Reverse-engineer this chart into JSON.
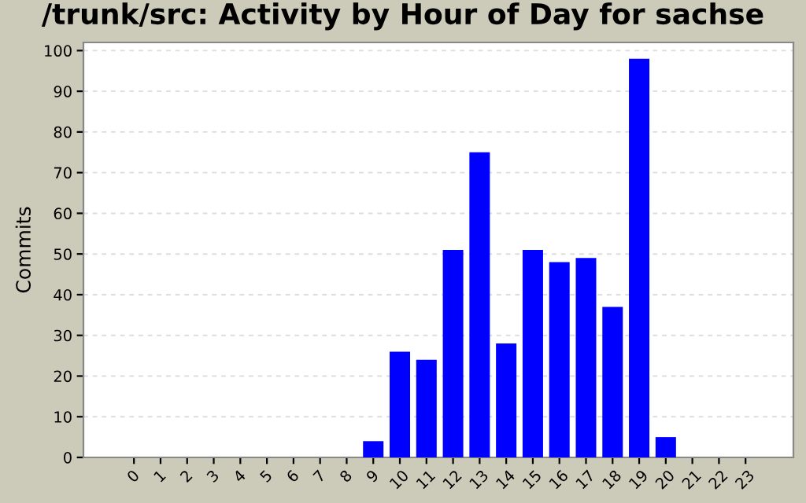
{
  "chart_data": {
    "type": "bar",
    "title": "/trunk/src: Activity by Hour of Day for sachse",
    "ylabel": "Commits",
    "categories": [
      "0",
      "1",
      "2",
      "3",
      "4",
      "5",
      "6",
      "7",
      "8",
      "9",
      "10",
      "11",
      "12",
      "13",
      "14",
      "15",
      "16",
      "17",
      "18",
      "19",
      "20",
      "21",
      "22",
      "23"
    ],
    "values": [
      0,
      0,
      0,
      0,
      0,
      0,
      0,
      0,
      0,
      4,
      26,
      24,
      51,
      75,
      28,
      51,
      48,
      49,
      37,
      98,
      5,
      0,
      0,
      0
    ],
    "color": "#0000ff",
    "ylim": [
      0,
      102
    ],
    "yticks": [
      0,
      10,
      20,
      30,
      40,
      50,
      60,
      70,
      80,
      90,
      100
    ],
    "grid": "y",
    "legend": false
  }
}
